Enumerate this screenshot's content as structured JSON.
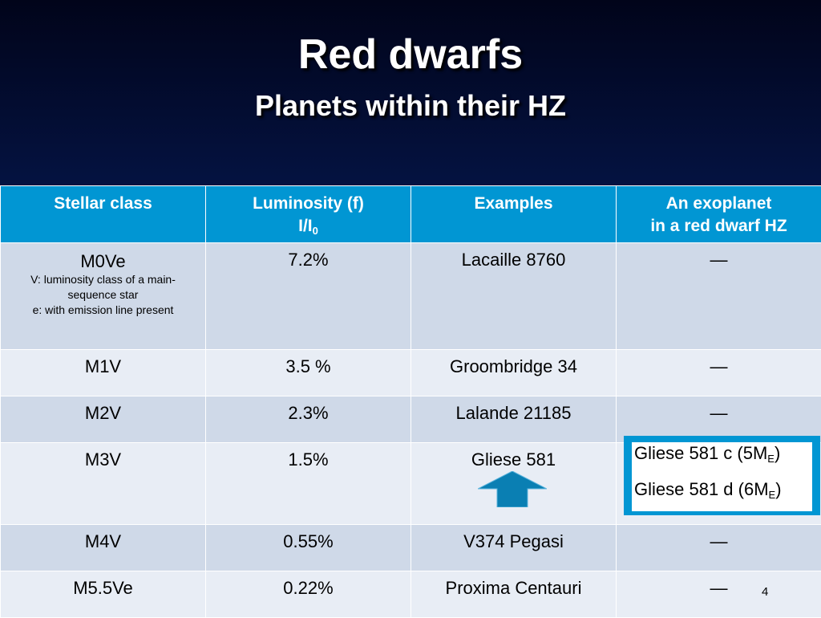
{
  "slide": {
    "title": "Red dwarfs",
    "subtitle": "Planets within their HZ",
    "page_number": "4"
  },
  "table": {
    "headers": {
      "stellar_class": "Stellar class",
      "luminosity_line1": "Luminosity (f)",
      "luminosity_line2_base": "I/I",
      "luminosity_line2_sub": "0",
      "examples": "Examples",
      "exoplanet_line1": "An exoplanet",
      "exoplanet_line2": "in a red dwarf HZ"
    },
    "rows": [
      {
        "stellar_class": "M0Ve",
        "notes": [
          "V: luminosity class of a main-",
          "sequence star",
          "e: with emission line present"
        ],
        "luminosity": "7.2%",
        "example": "Lacaille 8760",
        "exoplanet": "—"
      },
      {
        "stellar_class": "M1V",
        "luminosity": "3.5 %",
        "example": "Groombridge 34",
        "exoplanet": "—"
      },
      {
        "stellar_class": "M2V",
        "luminosity": "2.3%",
        "example": "Lalande 21185",
        "exoplanet": "—"
      },
      {
        "stellar_class": "M3V",
        "luminosity": "1.5%",
        "example": "Gliese 581",
        "exoplanet": ""
      },
      {
        "stellar_class": "M4V",
        "luminosity": "0.55%",
        "example": "V374 Pegasi",
        "exoplanet": "—"
      },
      {
        "stellar_class": "M5.5Ve",
        "luminosity": "0.22%",
        "example": "Proxima Centauri",
        "exoplanet": "—"
      }
    ]
  },
  "callout": {
    "planet_c_text": "Gliese 581 c (5M",
    "planet_c_sub": "E",
    "planet_c_close": ")",
    "planet_d_text": "Gliese 581 d (6M",
    "planet_d_sub": "E",
    "planet_d_close": ")"
  },
  "colors": {
    "header_bg": "#0196d3",
    "row_dark": "#cfd9e8",
    "row_light": "#e8edf5",
    "arrow": "#0a7fb3"
  },
  "icons": {
    "arrow": "up-arrow-icon"
  }
}
